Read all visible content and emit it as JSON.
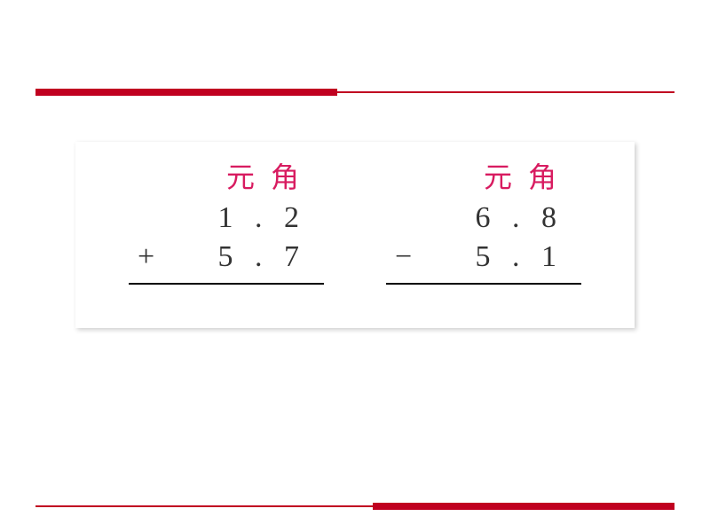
{
  "rule_color": "#c00020",
  "unit_header_color": "#d81b60",
  "problems": [
    {
      "unit1": "元",
      "unit2": "角",
      "line1": "1 . 2",
      "op": "+",
      "line2": "5 . 7"
    },
    {
      "unit1": "元",
      "unit2": "角",
      "line1": "6 . 8",
      "op": "−",
      "line2": "5 . 1"
    }
  ]
}
